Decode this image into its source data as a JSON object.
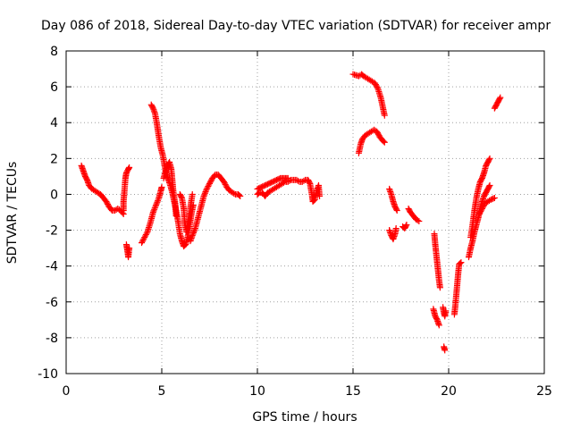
{
  "chart_data": {
    "type": "scatter",
    "title": "Day 086 of 2018, Sidereal Day-to-day VTEC variation (SDTVAR) for receiver ampr",
    "xlabel": "GPS time / hours",
    "ylabel": "SDTVAR / TECUs",
    "xlim": [
      0,
      25
    ],
    "ylim": [
      -10,
      8
    ],
    "x_ticks": [
      0,
      5,
      10,
      15,
      20,
      25
    ],
    "y_ticks": [
      -10,
      -8,
      -6,
      -4,
      -2,
      0,
      2,
      4,
      6,
      8
    ],
    "x_tick_labels": [
      "0",
      "5",
      "10",
      "15",
      "20",
      "25"
    ],
    "y_tick_labels": [
      "-10",
      "-8",
      "-6",
      "-4",
      "-2",
      "0",
      "2",
      "4",
      "6",
      "8"
    ],
    "grid": true,
    "marker": "+",
    "color": "#ff0000",
    "series": [
      {
        "points": [
          [
            0.8,
            1.6
          ],
          [
            0.9,
            1.3
          ],
          [
            1.0,
            1.0
          ],
          [
            1.1,
            0.8
          ],
          [
            1.2,
            0.5
          ],
          [
            1.35,
            0.3
          ],
          [
            1.5,
            0.2
          ],
          [
            1.65,
            0.1
          ],
          [
            1.8,
            0.0
          ],
          [
            1.95,
            -0.2
          ],
          [
            2.1,
            -0.4
          ],
          [
            2.25,
            -0.7
          ],
          [
            2.4,
            -0.9
          ],
          [
            2.55,
            -0.9
          ],
          [
            2.7,
            -0.8
          ],
          [
            2.85,
            -0.9
          ],
          [
            3.0,
            -1.1
          ]
        ]
      },
      {
        "points": [
          [
            3.0,
            -0.9
          ],
          [
            3.0,
            -0.4
          ],
          [
            3.05,
            0.2
          ],
          [
            3.1,
            0.9
          ],
          [
            3.15,
            1.2
          ],
          [
            3.25,
            1.4
          ],
          [
            3.3,
            1.5
          ]
        ]
      },
      {
        "points": [
          [
            3.15,
            -2.8
          ],
          [
            3.2,
            -3.1
          ],
          [
            3.25,
            -3.5
          ],
          [
            3.3,
            -3.0
          ]
        ]
      },
      {
        "points": [
          [
            3.95,
            -2.7
          ],
          [
            4.1,
            -2.4
          ],
          [
            4.25,
            -2.1
          ],
          [
            4.4,
            -1.6
          ],
          [
            4.55,
            -1.0
          ],
          [
            4.7,
            -0.6
          ],
          [
            4.85,
            -0.2
          ],
          [
            4.95,
            0.2
          ],
          [
            5.0,
            0.4
          ]
        ]
      },
      {
        "points": [
          [
            4.45,
            5.0
          ],
          [
            4.55,
            4.8
          ],
          [
            4.65,
            4.5
          ],
          [
            4.75,
            3.9
          ],
          [
            4.85,
            3.2
          ],
          [
            4.95,
            2.6
          ],
          [
            5.05,
            2.2
          ],
          [
            5.15,
            1.6
          ],
          [
            5.25,
            1.1
          ],
          [
            5.35,
            0.8
          ],
          [
            5.45,
            0.5
          ],
          [
            5.55,
            0.1
          ],
          [
            5.65,
            -0.4
          ],
          [
            5.75,
            -0.9
          ],
          [
            5.85,
            -1.5
          ],
          [
            5.95,
            -2.2
          ],
          [
            6.05,
            -2.6
          ],
          [
            6.15,
            -2.9
          ],
          [
            6.25,
            -2.8
          ],
          [
            6.35,
            -2.4
          ],
          [
            6.45,
            -1.8
          ],
          [
            6.55,
            -1.1
          ],
          [
            6.65,
            -0.6
          ]
        ]
      },
      {
        "points": [
          [
            5.1,
            0.9
          ],
          [
            5.2,
            1.3
          ],
          [
            5.3,
            1.6
          ],
          [
            5.4,
            1.8
          ],
          [
            5.5,
            1.4
          ],
          [
            5.55,
            0.8
          ],
          [
            5.6,
            0.2
          ],
          [
            5.7,
            -0.5
          ],
          [
            5.75,
            -1.2
          ]
        ]
      },
      {
        "points": [
          [
            5.95,
            0.0
          ],
          [
            6.05,
            -0.2
          ],
          [
            6.15,
            -0.8
          ],
          [
            6.2,
            -1.6
          ],
          [
            6.3,
            -2.1
          ],
          [
            6.4,
            -1.5
          ],
          [
            6.5,
            -0.7
          ],
          [
            6.6,
            0.0
          ]
        ]
      },
      {
        "points": [
          [
            6.5,
            -2.6
          ],
          [
            6.6,
            -2.3
          ],
          [
            6.75,
            -1.9
          ],
          [
            6.9,
            -1.3
          ],
          [
            7.05,
            -0.7
          ],
          [
            7.2,
            -0.1
          ],
          [
            7.35,
            0.3
          ],
          [
            7.5,
            0.6
          ],
          [
            7.65,
            0.9
          ],
          [
            7.8,
            1.1
          ],
          [
            7.95,
            1.1
          ],
          [
            8.1,
            0.9
          ],
          [
            8.25,
            0.7
          ],
          [
            8.4,
            0.4
          ],
          [
            8.55,
            0.2
          ],
          [
            8.7,
            0.1
          ],
          [
            8.85,
            0.0
          ],
          [
            9.0,
            0.0
          ],
          [
            9.1,
            -0.1
          ]
        ]
      },
      {
        "points": [
          [
            10.0,
            0.0
          ],
          [
            10.1,
            0.1
          ],
          [
            10.25,
            0.1
          ],
          [
            10.4,
            -0.1
          ],
          [
            10.55,
            0.1
          ],
          [
            10.7,
            0.2
          ],
          [
            10.85,
            0.3
          ],
          [
            11.0,
            0.4
          ],
          [
            11.15,
            0.5
          ],
          [
            11.3,
            0.6
          ],
          [
            11.45,
            0.7
          ],
          [
            11.6,
            0.7
          ],
          [
            11.75,
            0.8
          ],
          [
            11.9,
            0.8
          ],
          [
            12.05,
            0.8
          ],
          [
            12.2,
            0.7
          ],
          [
            12.35,
            0.7
          ],
          [
            12.5,
            0.8
          ],
          [
            12.65,
            0.8
          ],
          [
            12.75,
            0.6
          ],
          [
            12.85,
            0.0
          ],
          [
            12.9,
            -0.4
          ],
          [
            13.0,
            -0.3
          ],
          [
            13.1,
            0.2
          ],
          [
            13.2,
            0.5
          ],
          [
            13.25,
            -0.1
          ]
        ]
      },
      {
        "points": [
          [
            10.0,
            0.3
          ],
          [
            10.2,
            0.4
          ],
          [
            10.4,
            0.5
          ],
          [
            10.6,
            0.6
          ],
          [
            10.8,
            0.7
          ],
          [
            11.0,
            0.8
          ],
          [
            11.2,
            0.9
          ],
          [
            11.4,
            0.9
          ],
          [
            11.6,
            0.9
          ]
        ]
      },
      {
        "points": [
          [
            15.0,
            6.7
          ],
          [
            15.15,
            6.65
          ],
          [
            15.3,
            6.6
          ],
          [
            15.45,
            6.7
          ],
          [
            15.55,
            6.6
          ],
          [
            15.7,
            6.5
          ],
          [
            15.85,
            6.4
          ],
          [
            16.0,
            6.3
          ],
          [
            16.15,
            6.2
          ],
          [
            16.3,
            5.9
          ],
          [
            16.45,
            5.4
          ],
          [
            16.55,
            4.9
          ],
          [
            16.65,
            4.4
          ]
        ]
      },
      {
        "points": [
          [
            15.3,
            2.3
          ],
          [
            15.4,
            2.8
          ],
          [
            15.5,
            3.1
          ],
          [
            15.65,
            3.3
          ],
          [
            15.8,
            3.4
          ],
          [
            15.95,
            3.5
          ],
          [
            16.1,
            3.6
          ],
          [
            16.25,
            3.5
          ],
          [
            16.4,
            3.2
          ],
          [
            16.55,
            3.0
          ],
          [
            16.65,
            2.9
          ]
        ]
      },
      {
        "points": [
          [
            16.9,
            0.3
          ],
          [
            17.0,
            0.0
          ],
          [
            17.1,
            -0.4
          ],
          [
            17.2,
            -0.7
          ],
          [
            17.3,
            -0.9
          ]
        ]
      },
      {
        "points": [
          [
            16.9,
            -2.0
          ],
          [
            17.0,
            -2.3
          ],
          [
            17.1,
            -2.5
          ],
          [
            17.2,
            -2.2
          ],
          [
            17.25,
            -1.9
          ]
        ]
      },
      {
        "points": [
          [
            17.6,
            -1.8
          ],
          [
            17.7,
            -1.9
          ],
          [
            17.8,
            -1.7
          ]
        ]
      },
      {
        "points": [
          [
            17.9,
            -0.8
          ],
          [
            18.0,
            -1.0
          ],
          [
            18.15,
            -1.2
          ],
          [
            18.3,
            -1.4
          ],
          [
            18.45,
            -1.5
          ]
        ]
      },
      {
        "points": [
          [
            19.25,
            -2.2
          ],
          [
            19.3,
            -2.8
          ],
          [
            19.35,
            -3.3
          ],
          [
            19.4,
            -3.8
          ],
          [
            19.45,
            -4.3
          ],
          [
            19.5,
            -4.8
          ],
          [
            19.55,
            -5.2
          ]
        ]
      },
      {
        "points": [
          [
            19.2,
            -6.4
          ],
          [
            19.3,
            -6.8
          ],
          [
            19.4,
            -7.0
          ],
          [
            19.5,
            -7.3
          ]
        ]
      },
      {
        "points": [
          [
            19.7,
            -6.3
          ],
          [
            19.75,
            -6.6
          ],
          [
            19.8,
            -6.8
          ],
          [
            19.85,
            -6.5
          ]
        ]
      },
      {
        "points": [
          [
            19.75,
            -8.5
          ],
          [
            19.8,
            -8.7
          ]
        ]
      },
      {
        "points": [
          [
            20.3,
            -6.7
          ],
          [
            20.35,
            -6.2
          ],
          [
            20.4,
            -5.6
          ],
          [
            20.45,
            -5.0
          ],
          [
            20.5,
            -4.4
          ],
          [
            20.55,
            -3.9
          ],
          [
            20.65,
            -3.8
          ]
        ]
      },
      {
        "points": [
          [
            21.05,
            -3.5
          ],
          [
            21.15,
            -3.0
          ],
          [
            21.25,
            -2.6
          ],
          [
            21.35,
            -2.1
          ],
          [
            21.45,
            -1.7
          ],
          [
            21.55,
            -1.3
          ],
          [
            21.65,
            -0.8
          ],
          [
            21.75,
            -0.4
          ],
          [
            21.85,
            -0.1
          ],
          [
            21.95,
            0.1
          ],
          [
            22.05,
            0.3
          ],
          [
            22.15,
            0.5
          ]
        ]
      },
      {
        "points": [
          [
            21.15,
            -2.4
          ],
          [
            21.25,
            -1.7
          ],
          [
            21.35,
            -0.9
          ],
          [
            21.45,
            -0.2
          ],
          [
            21.55,
            0.3
          ],
          [
            21.65,
            0.7
          ],
          [
            21.75,
            0.9
          ],
          [
            21.85,
            1.2
          ],
          [
            21.95,
            1.6
          ],
          [
            22.05,
            1.8
          ],
          [
            22.15,
            2.0
          ]
        ]
      },
      {
        "points": [
          [
            21.6,
            -1.1
          ],
          [
            21.75,
            -0.8
          ],
          [
            21.9,
            -0.5
          ],
          [
            22.05,
            -0.4
          ],
          [
            22.2,
            -0.3
          ],
          [
            22.4,
            -0.2
          ]
        ]
      },
      {
        "points": [
          [
            22.4,
            4.8
          ],
          [
            22.5,
            5.0
          ],
          [
            22.6,
            5.2
          ],
          [
            22.7,
            5.4
          ]
        ]
      }
    ]
  }
}
